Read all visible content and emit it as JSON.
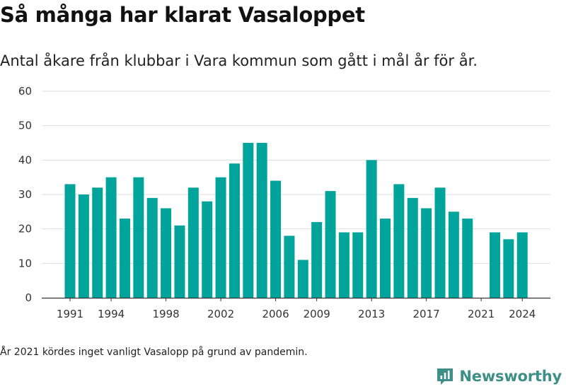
{
  "title": "Så många har klarat Vasaloppet",
  "subtitle": "Antal åkare från klubbar i Vara kommun som gått i mål år för år.",
  "footnote": "År 2021 kördes inget vanligt Vasalopp på grund av pandemin.",
  "brand": {
    "name": "Newsworthy",
    "logo_icon": "newsworthy-chart-logo-icon",
    "color": "#3d8f88"
  },
  "chart_data": {
    "type": "bar",
    "title": "",
    "xlabel": "",
    "ylabel": "",
    "categories": [
      1991,
      1992,
      1993,
      1994,
      1995,
      1996,
      1997,
      1998,
      1999,
      2000,
      2001,
      2002,
      2003,
      2004,
      2005,
      2006,
      2007,
      2008,
      2009,
      2010,
      2011,
      2012,
      2013,
      2014,
      2015,
      2016,
      2017,
      2018,
      2019,
      2020,
      2021,
      2022,
      2023,
      2024
    ],
    "values": [
      33,
      30,
      32,
      35,
      23,
      35,
      29,
      26,
      21,
      32,
      28,
      35,
      39,
      45,
      45,
      34,
      18,
      11,
      22,
      31,
      19,
      19,
      40,
      23,
      33,
      29,
      26,
      32,
      25,
      23,
      null,
      19,
      17,
      19
    ],
    "ylim": [
      0,
      60
    ],
    "yticks": [
      0,
      10,
      20,
      30,
      40,
      50,
      60
    ],
    "xticks": [
      1991,
      1994,
      1998,
      2002,
      2006,
      2009,
      2013,
      2017,
      2021,
      2024
    ],
    "bar_color": "#00a49a",
    "grid": "horizontal",
    "legend": "none"
  }
}
